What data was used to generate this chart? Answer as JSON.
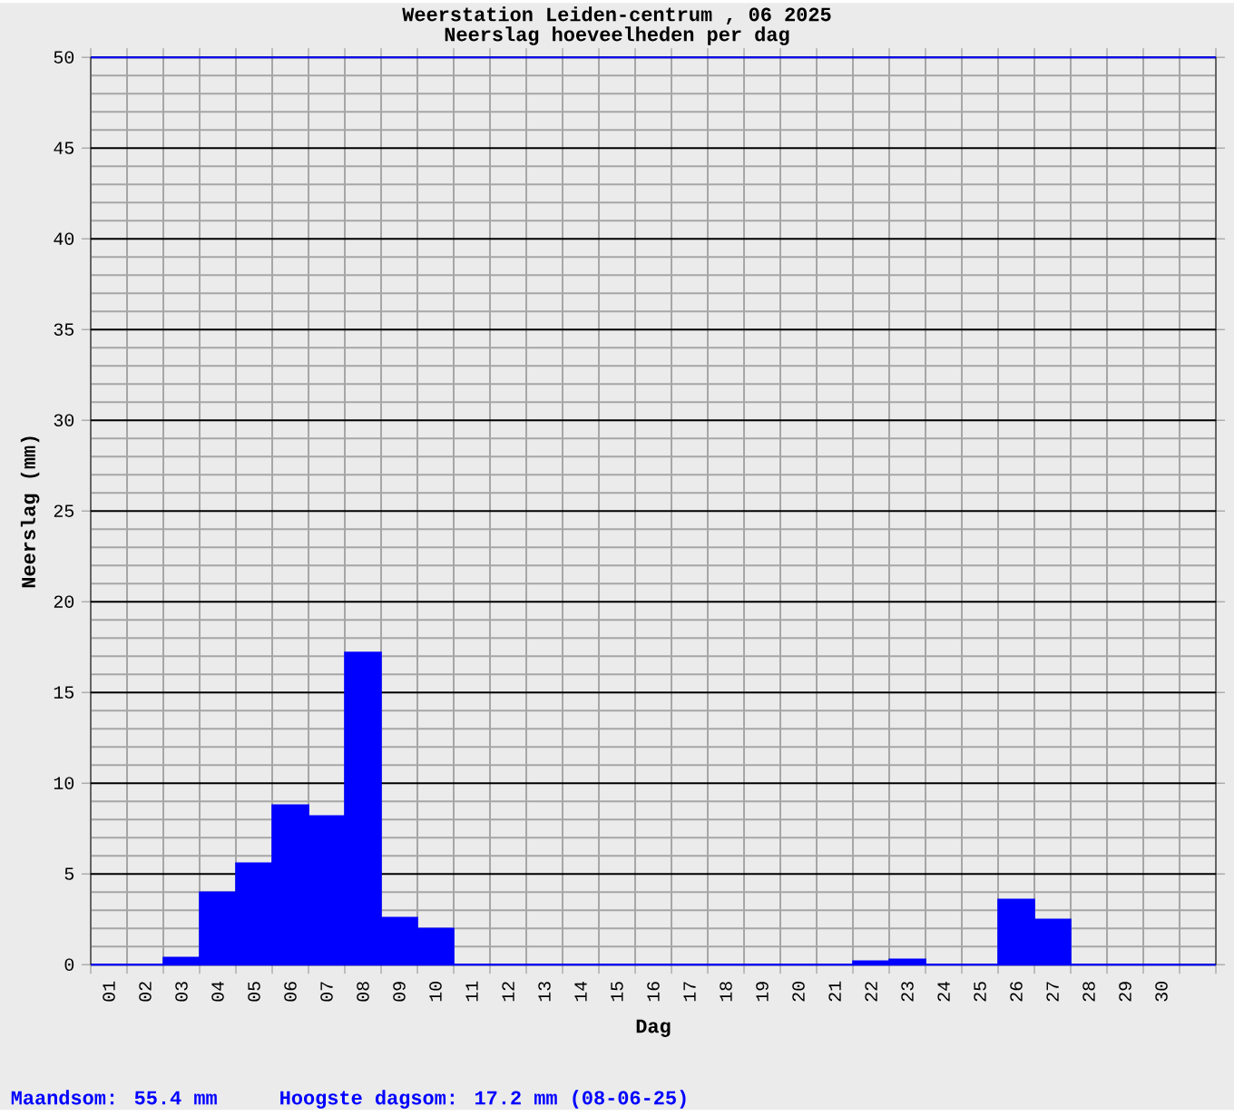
{
  "chart_data": {
    "type": "bar",
    "title": "Weerstation Leiden-centrum , 06 2025",
    "subtitle": "Neerslag hoeveelheden per dag",
    "xlabel": "Dag",
    "ylabel": "Neerslag (mm)",
    "categories": [
      "01",
      "02",
      "03",
      "04",
      "05",
      "06",
      "07",
      "08",
      "09",
      "10",
      "11",
      "12",
      "13",
      "14",
      "15",
      "16",
      "17",
      "18",
      "19",
      "20",
      "21",
      "22",
      "23",
      "24",
      "25",
      "26",
      "27",
      "28",
      "29",
      "30"
    ],
    "values": [
      0,
      0,
      0.4,
      4.0,
      5.6,
      8.8,
      8.2,
      17.2,
      2.6,
      2.0,
      0,
      0,
      0,
      0,
      0,
      0,
      0,
      0,
      0,
      0,
      0,
      0.2,
      0.3,
      0,
      0,
      3.6,
      2.5,
      0,
      0,
      0
    ],
    "color": "#0000ff",
    "ylim": [
      0,
      50
    ],
    "yticks": [
      0,
      5,
      10,
      15,
      20,
      25,
      30,
      35,
      40,
      45,
      50
    ],
    "grid": true,
    "annotations": [
      "Maandsom: 55.4 mm",
      "Hoogste dagsom: 17.2 mm (08-06-25)"
    ]
  }
}
